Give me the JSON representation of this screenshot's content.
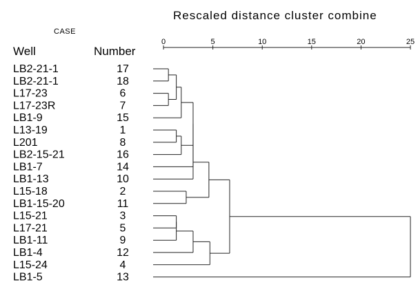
{
  "title": "Rescaled distance cluster combine",
  "case_label": "CASE",
  "columns": {
    "well": "Well",
    "number": "Number"
  },
  "axis": {
    "ticks": [
      0,
      5,
      10,
      15,
      20,
      25
    ],
    "range": [
      0,
      25
    ]
  },
  "cases": [
    {
      "well": "LB2-21-1",
      "number": "17"
    },
    {
      "well": "LB2-21-1",
      "number": "18"
    },
    {
      "well": "L17-23",
      "number": "6"
    },
    {
      "well": "L17-23R",
      "number": "7"
    },
    {
      "well": "LB1-9",
      "number": "15"
    },
    {
      "well": "L13-19",
      "number": "1"
    },
    {
      "well": "L201",
      "number": "8"
    },
    {
      "well": "LB2-15-21",
      "number": "16"
    },
    {
      "well": "LB1-7",
      "number": "14"
    },
    {
      "well": "LB1-13",
      "number": "10"
    },
    {
      "well": "L15-18",
      "number": "2"
    },
    {
      "well": "LB1-15-20",
      "number": "11"
    },
    {
      "well": "L15-21",
      "number": "3"
    },
    {
      "well": "L17-21",
      "number": "5"
    },
    {
      "well": "LB1-11",
      "number": "9"
    },
    {
      "well": "LB1-4",
      "number": "12"
    },
    {
      "well": "L15-24",
      "number": "4"
    },
    {
      "well": "LB1-5",
      "number": "13"
    }
  ],
  "merges": [
    {
      "a": 0,
      "b": 1,
      "d": 0.5
    },
    {
      "a": 2,
      "b": 3,
      "d": 0.5
    },
    {
      "a": 5,
      "b": 6,
      "d": 1.3
    },
    {
      "a": 12,
      "b": 13,
      "d": 1.3
    },
    {
      "a": "m0",
      "b": "m1",
      "d": 1.3
    },
    {
      "a": "m3",
      "b": 14,
      "d": 1.3
    },
    {
      "a": "m4",
      "b": 4,
      "d": 1.8
    },
    {
      "a": "m2",
      "b": 7,
      "d": 1.8
    },
    {
      "a": 10,
      "b": 11,
      "d": 2.3
    },
    {
      "a": "m6",
      "b": "m7",
      "d": 3.0
    },
    {
      "a": "m9",
      "b": 8,
      "d": 3.0
    },
    {
      "a": "m10",
      "b": 9,
      "d": 3.0
    },
    {
      "a": "m5",
      "b": 15,
      "d": 3.0
    },
    {
      "a": "m11",
      "b": "m8",
      "d": 4.6
    },
    {
      "a": "m12",
      "b": 16,
      "d": 4.7
    },
    {
      "a": "m13",
      "b": "m14",
      "d": 6.7
    },
    {
      "a": "m15",
      "b": 17,
      "d": 25
    }
  ]
}
